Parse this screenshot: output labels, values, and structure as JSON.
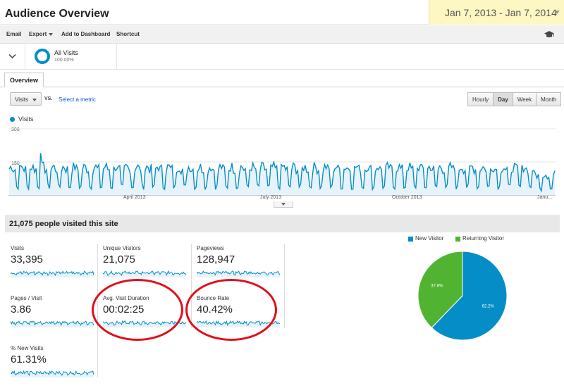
{
  "header": {
    "title": "Audience Overview",
    "date_range": "Jan 7, 2013 - Jan 7, 2014"
  },
  "toolbar": {
    "email": "Email",
    "export": "Export",
    "add_to_dashboard": "Add to Dashboard",
    "shortcut": "Shortcut",
    "icon": "graduation-cap-icon"
  },
  "segment": {
    "name": "All Visits",
    "percent": "100.00%"
  },
  "tabs": {
    "overview": "Overview"
  },
  "controls": {
    "metric": "Visits",
    "vs": "VS.",
    "select_metric": "Select a metric",
    "granularity": [
      "Hourly",
      "Day",
      "Week",
      "Month"
    ],
    "active_granularity": "Day"
  },
  "chart_data": {
    "type": "line",
    "series": [
      {
        "name": "Visits",
        "color": "#058dc7"
      }
    ],
    "y_ticks": [
      "300",
      "150"
    ],
    "ylim": [
      0,
      300
    ],
    "x_ticks": [
      "April 2013",
      "July 2013",
      "October 2013",
      "Janu..."
    ],
    "start": "2013-01-07",
    "end": "2014-01-07",
    "note": "Daily visits with weekly cycle: weekday peaks ~110-150, weekend troughs ~20-40; an early spike near ~190 in late January 2013."
  },
  "summary": {
    "text": "21,075 people visited this site"
  },
  "metrics": [
    {
      "label": "Visits",
      "value": "33,395"
    },
    {
      "label": "Unique Visitors",
      "value": "21,075"
    },
    {
      "label": "Pageviews",
      "value": "128,947"
    },
    {
      "label": "Pages / Visit",
      "value": "3.86"
    },
    {
      "label": "Avg. Visit Duration",
      "value": "00:02:25"
    },
    {
      "label": "Bounce Rate",
      "value": "40.42%"
    },
    {
      "label": "% New Visits",
      "value": "61.31%"
    }
  ],
  "pie": {
    "legend": [
      {
        "label": "New Visitor",
        "color": "#058dc7"
      },
      {
        "label": "Returning Visitor",
        "color": "#50b432"
      }
    ],
    "new_pct": 62.2,
    "returning_pct": 37.8,
    "new_label": "62.2%",
    "returning_label": "37.8%"
  },
  "colors": {
    "accent": "#058dc7",
    "annotation": "#e0101a",
    "highlight": "#fdf7c3"
  }
}
